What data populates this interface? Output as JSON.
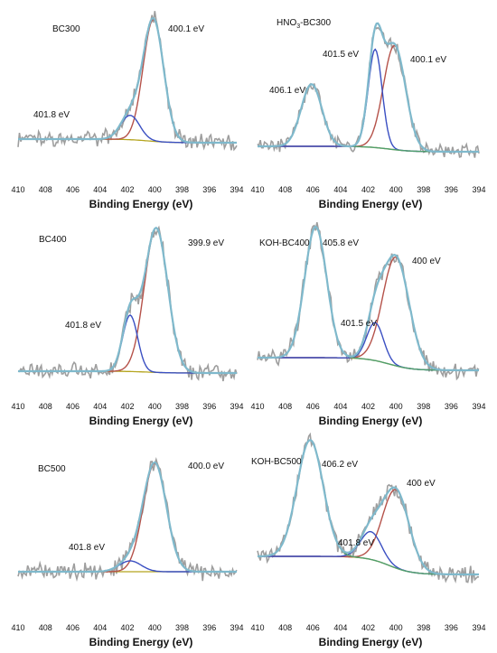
{
  "chart_data": [
    {
      "type": "line",
      "title": "BC300",
      "xlabel": "Binding Energy (eV)",
      "xlim": [
        410,
        394
      ],
      "x_reversed": true,
      "x_ticks": [
        410,
        408,
        406,
        404,
        402,
        400,
        398,
        396,
        394
      ],
      "series_components": [
        {
          "role": "raw",
          "color": "#9e9e9e"
        },
        {
          "role": "envelope",
          "color": "#7fb9cc"
        },
        {
          "role": "baseline",
          "color": "#b5a51f"
        },
        {
          "role": "peak",
          "center": 400.1,
          "amplitude": 1.0,
          "sigma": 0.75,
          "color": "#b5524a"
        },
        {
          "role": "peak",
          "center": 401.8,
          "amplitude": 0.2,
          "sigma": 0.7,
          "color": "#3a4fc2"
        }
      ],
      "peak_labels": [
        "400.1 eV",
        "401.8 eV"
      ]
    },
    {
      "type": "line",
      "title": "HNO3-BC300",
      "title_main": "HNO",
      "title_sub": "3",
      "title_rest": "-BC300",
      "xlabel": "Binding Energy (eV)",
      "xlim": [
        410,
        394
      ],
      "x_reversed": true,
      "x_ticks": [
        410,
        408,
        406,
        404,
        402,
        400,
        398,
        396,
        394
      ],
      "series_components": [
        {
          "role": "raw",
          "color": "#9e9e9e"
        },
        {
          "role": "envelope",
          "color": "#7fb9cc"
        },
        {
          "role": "baseline",
          "color": "#b5a51f"
        },
        {
          "role": "peak",
          "center": 400.1,
          "amplitude": 0.72,
          "sigma": 0.8,
          "color": "#b5524a"
        },
        {
          "role": "peak",
          "center": 401.5,
          "amplitude": 0.68,
          "sigma": 0.5,
          "color": "#3a4fc2"
        },
        {
          "role": "peak",
          "center": 406.1,
          "amplitude": 0.43,
          "sigma": 0.75,
          "color": "#4f9e6d"
        }
      ],
      "peak_labels": [
        "406.1 eV",
        "401.5 eV",
        "400.1 eV"
      ]
    },
    {
      "type": "line",
      "title": "BC400",
      "xlabel": "Binding Energy (eV)",
      "xlim": [
        410,
        394
      ],
      "x_reversed": true,
      "x_ticks": [
        410,
        408,
        406,
        404,
        402,
        400,
        398,
        396,
        394
      ],
      "series_components": [
        {
          "role": "raw",
          "color": "#9e9e9e"
        },
        {
          "role": "envelope",
          "color": "#7fb9cc"
        },
        {
          "role": "baseline",
          "color": "#b5a51f"
        },
        {
          "role": "peak",
          "center": 399.9,
          "amplitude": 1.0,
          "sigma": 0.85,
          "color": "#b5524a"
        },
        {
          "role": "peak",
          "center": 401.8,
          "amplitude": 0.39,
          "sigma": 0.55,
          "color": "#3a4fc2"
        }
      ],
      "peak_labels": [
        "399.9 eV",
        "401.8 eV"
      ]
    },
    {
      "type": "line",
      "title": "KOH-BC400",
      "xlabel": "Binding Energy (eV)",
      "xlim": [
        410,
        394
      ],
      "x_reversed": true,
      "x_ticks": [
        410,
        408,
        406,
        404,
        402,
        400,
        398,
        396,
        394
      ],
      "series_components": [
        {
          "role": "raw",
          "color": "#9e9e9e"
        },
        {
          "role": "envelope",
          "color": "#7fb9cc"
        },
        {
          "role": "baseline",
          "color": "#b5a51f"
        },
        {
          "role": "peak",
          "center": 400.0,
          "amplitude": 0.83,
          "sigma": 0.95,
          "color": "#b5524a"
        },
        {
          "role": "peak",
          "center": 401.5,
          "amplitude": 0.29,
          "sigma": 0.6,
          "color": "#3a4fc2"
        },
        {
          "role": "peak",
          "center": 405.8,
          "amplitude": 1.0,
          "sigma": 0.8,
          "color": "#4f9e6d"
        }
      ],
      "peak_labels": [
        "405.8 eV",
        "401.5 eV",
        "400 eV"
      ]
    },
    {
      "type": "line",
      "title": "BC500",
      "xlabel": "Binding Energy (eV)",
      "xlim": [
        410,
        394
      ],
      "x_reversed": true,
      "x_ticks": [
        410,
        408,
        406,
        404,
        402,
        400,
        398,
        396,
        394
      ],
      "series_components": [
        {
          "role": "raw",
          "color": "#9e9e9e"
        },
        {
          "role": "envelope",
          "color": "#7fb9cc"
        },
        {
          "role": "baseline",
          "color": "#b5a51f"
        },
        {
          "role": "peak",
          "center": 400.0,
          "amplitude": 1.0,
          "sigma": 0.85,
          "color": "#b5524a"
        },
        {
          "role": "peak",
          "center": 401.8,
          "amplitude": 0.1,
          "sigma": 0.8,
          "color": "#3a4fc2"
        }
      ],
      "peak_labels": [
        "400.0 eV",
        "401.8 eV"
      ]
    },
    {
      "type": "line",
      "title": "KOH-BC500",
      "xlabel": "Binding Energy (eV)",
      "xlim": [
        410,
        394
      ],
      "x_reversed": true,
      "x_ticks": [
        410,
        408,
        406,
        404,
        402,
        400,
        398,
        396,
        394
      ],
      "series_components": [
        {
          "role": "raw",
          "color": "#9e9e9e"
        },
        {
          "role": "envelope",
          "color": "#7fb9cc"
        },
        {
          "role": "baseline",
          "color": "#b5a51f"
        },
        {
          "role": "peak",
          "center": 400.0,
          "amplitude": 0.62,
          "sigma": 0.95,
          "color": "#b5524a"
        },
        {
          "role": "peak",
          "center": 401.8,
          "amplitude": 0.22,
          "sigma": 0.75,
          "color": "#3a4fc2"
        },
        {
          "role": "peak",
          "center": 406.2,
          "amplitude": 0.92,
          "sigma": 0.95,
          "color": "#4f9e6d"
        }
      ],
      "peak_labels": [
        "406.2 eV",
        "401.8 eV",
        "400 eV"
      ]
    }
  ]
}
